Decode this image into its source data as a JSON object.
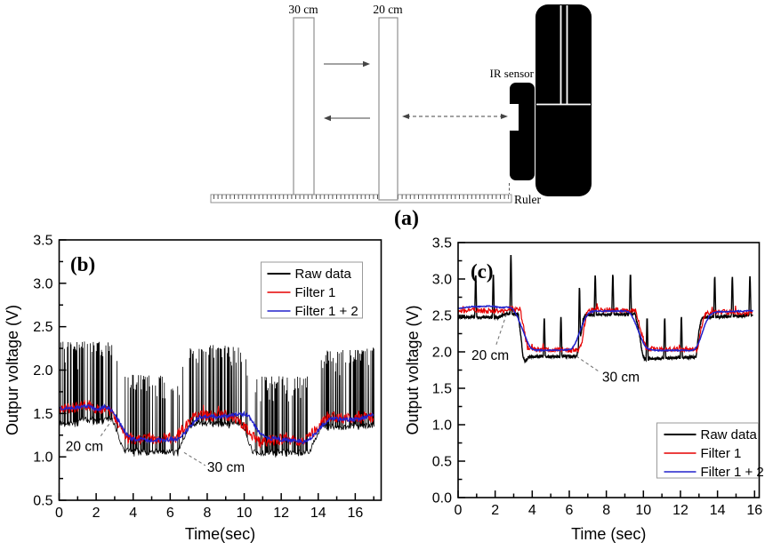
{
  "figure": {
    "panel_a": {
      "label": "(a)",
      "bar_left_label": "30 cm",
      "bar_right_label": "20 cm",
      "ir_sensor_label": "IR sensor",
      "ruler_label": "Ruler"
    },
    "colors": {
      "raw": "#000000",
      "filter1": "#e60000",
      "filter2": "#2121cc",
      "leader": "#777777",
      "diagram_outline": "#8f8f8f"
    }
  },
  "chart_data": [
    {
      "type": "line",
      "panel_label": "(b)",
      "xlabel": "Time(sec)",
      "ylabel": "Outpur voltage (V)",
      "xlim": [
        0,
        17.4
      ],
      "ylim": [
        0.5,
        3.5
      ],
      "xticks": [
        0,
        2,
        4,
        6,
        8,
        10,
        12,
        14,
        16
      ],
      "xminor_step": 1,
      "yticks": [
        0.5,
        1.0,
        1.5,
        2.0,
        2.5,
        3.0,
        3.5
      ],
      "ytick_labels": [
        "0.5",
        "1.0",
        "1.5",
        "2.0",
        "2.5",
        "3.0",
        "3.5"
      ],
      "yminor_step": 0.25,
      "tmax": 17.0,
      "legend": {
        "position": "top-right",
        "entries": [
          "Raw data",
          "Filter 1",
          "Filter 1 + 2"
        ]
      },
      "annotations": [
        {
          "text": "20 cm",
          "tx": 0.35,
          "ty": 1.07,
          "leader": [
            [
              2.25,
              1.24
            ],
            [
              2.97,
              1.46
            ]
          ]
        },
        {
          "text": "30 cm",
          "tx": 8.0,
          "ty": 0.83,
          "leader": [
            [
              6.75,
              1.05
            ],
            [
              7.9,
              0.9
            ]
          ]
        }
      ],
      "series": [
        {
          "name": "Raw data",
          "color": "#000000",
          "role": "raw_band",
          "width": 0.8,
          "noise": 0.07,
          "spike_probability": 0.58,
          "base_keypoints": [
            [
              0,
              1.4
            ],
            [
              0.4,
              1.38
            ],
            [
              1,
              1.4
            ],
            [
              1.5,
              1.44
            ],
            [
              2,
              1.4
            ],
            [
              2.6,
              1.45
            ],
            [
              2.9,
              1.42
            ],
            [
              3.5,
              1.08
            ],
            [
              4,
              1.06
            ],
            [
              6.4,
              1.05
            ],
            [
              6.7,
              1.18
            ],
            [
              7,
              1.36
            ],
            [
              7.5,
              1.38
            ],
            [
              9.9,
              1.38
            ],
            [
              10.1,
              1.25
            ],
            [
              10.45,
              1.05
            ],
            [
              13.55,
              1.05
            ],
            [
              13.8,
              1.2
            ],
            [
              14.15,
              1.35
            ],
            [
              15,
              1.34
            ],
            [
              17,
              1.37
            ]
          ],
          "spike_top_keypoints": [
            [
              0,
              2.33
            ],
            [
              2.9,
              2.33
            ],
            [
              3.4,
              1.95
            ],
            [
              6.5,
              1.93
            ],
            [
              6.95,
              2.25
            ],
            [
              7.3,
              2.3
            ],
            [
              9.9,
              2.28
            ],
            [
              10.35,
              1.93
            ],
            [
              13.6,
              1.93
            ],
            [
              14.1,
              2.22
            ],
            [
              17,
              2.26
            ]
          ]
        },
        {
          "name": "Filter 1",
          "color": "#e60000",
          "role": "filter",
          "width": 1.0,
          "noise": 0.065,
          "mean_keypoints": [
            [
              0,
              1.55
            ],
            [
              0.8,
              1.57
            ],
            [
              1.5,
              1.6
            ],
            [
              2.2,
              1.53
            ],
            [
              2.6,
              1.58
            ],
            [
              3,
              1.45
            ],
            [
              3.7,
              1.22
            ],
            [
              4.5,
              1.2
            ],
            [
              6.3,
              1.22
            ],
            [
              6.8,
              1.35
            ],
            [
              7.4,
              1.5
            ],
            [
              8,
              1.47
            ],
            [
              9.3,
              1.48
            ],
            [
              9.7,
              1.42
            ],
            [
              10.3,
              1.27
            ],
            [
              10.8,
              1.17
            ],
            [
              11.5,
              1.2
            ],
            [
              13.3,
              1.19
            ],
            [
              13.9,
              1.33
            ],
            [
              14.5,
              1.46
            ],
            [
              15.3,
              1.44
            ],
            [
              16.2,
              1.47
            ],
            [
              17,
              1.44
            ]
          ]
        },
        {
          "name": "Filter 1 + 2",
          "color": "#2121cc",
          "role": "filter_smooth",
          "width": 1.3,
          "noise": 0.022,
          "mean_keypoints": [
            [
              0,
              1.56
            ],
            [
              1,
              1.57
            ],
            [
              1.6,
              1.59
            ],
            [
              2.1,
              1.54
            ],
            [
              2.65,
              1.59
            ],
            [
              3.1,
              1.45
            ],
            [
              3.8,
              1.21
            ],
            [
              5,
              1.19
            ],
            [
              6.5,
              1.2
            ],
            [
              7,
              1.33
            ],
            [
              7.6,
              1.47
            ],
            [
              8.6,
              1.46
            ],
            [
              10.2,
              1.5
            ],
            [
              10.7,
              1.3
            ],
            [
              11.2,
              1.22
            ],
            [
              12,
              1.2
            ],
            [
              13.4,
              1.17
            ],
            [
              14,
              1.31
            ],
            [
              14.6,
              1.44
            ],
            [
              15.6,
              1.43
            ],
            [
              16.5,
              1.44
            ],
            [
              17,
              1.5
            ]
          ]
        }
      ]
    },
    {
      "type": "line",
      "panel_label": "(c)",
      "xlabel": "Time (sec)",
      "ylabel": "Output voltage (V)",
      "xlim": [
        0,
        16.25
      ],
      "ylim": [
        0,
        3.5
      ],
      "xticks": [
        0,
        2,
        4,
        6,
        8,
        10,
        12,
        14,
        16
      ],
      "xminor_step": 1,
      "yticks": [
        0,
        0.5,
        1,
        1.5,
        2,
        2.5,
        3,
        3.5
      ],
      "ytick_labels": [
        "0.0",
        "0.5",
        "1.0",
        "1.5",
        "2.0",
        "2.5",
        "3.0",
        "3.5"
      ],
      "yminor_step": 0.25,
      "tmax": 15.9,
      "legend": {
        "position": "bottom-right",
        "entries": [
          "Raw data",
          "Filter 1",
          "Filter 1 + 2"
        ]
      },
      "annotations": [
        {
          "text": "20 cm",
          "tx": 0.72,
          "ty": 1.89,
          "leader": [
            [
              2.06,
              2.1
            ],
            [
              2.64,
              2.54
            ]
          ]
        },
        {
          "text": "30 cm",
          "tx": 7.77,
          "ty": 1.59,
          "leader": [
            [
              6.38,
              1.94
            ],
            [
              7.6,
              1.73
            ]
          ]
        }
      ],
      "series": [
        {
          "name": "Raw data",
          "color": "#000000",
          "role": "raw_spiky",
          "width": 1.4,
          "noise": 0.035,
          "base_keypoints": [
            [
              0,
              2.47
            ],
            [
              0.5,
              2.48
            ],
            [
              2.2,
              2.47
            ],
            [
              2.5,
              2.52
            ],
            [
              3.25,
              2.52
            ],
            [
              3.5,
              1.95
            ],
            [
              3.62,
              1.86
            ],
            [
              3.8,
              1.93
            ],
            [
              6.4,
              1.94
            ],
            [
              6.55,
              2.1
            ],
            [
              6.75,
              2.45
            ],
            [
              6.9,
              2.51
            ],
            [
              9.55,
              2.52
            ],
            [
              9.75,
              2.3
            ],
            [
              9.95,
              1.97
            ],
            [
              10.05,
              1.9
            ],
            [
              12.85,
              1.93
            ],
            [
              13,
              2.3
            ],
            [
              13.15,
              2.47
            ],
            [
              15.9,
              2.5
            ]
          ],
          "spikes": [
            [
              0.95,
              3.04
            ],
            [
              1.9,
              3.05
            ],
            [
              2.85,
              3.32
            ],
            [
              4.65,
              2.45
            ],
            [
              5.55,
              2.47
            ],
            [
              6.55,
              2.87
            ],
            [
              7.4,
              3.04
            ],
            [
              8.35,
              3.05
            ],
            [
              9.3,
              3.05
            ],
            [
              10.2,
              2.45
            ],
            [
              11.15,
              2.45
            ],
            [
              12.05,
              2.47
            ],
            [
              13.85,
              3.02
            ],
            [
              14.8,
              3.02
            ],
            [
              15.75,
              3.03
            ]
          ]
        },
        {
          "name": "Filter 1",
          "color": "#e60000",
          "role": "filter",
          "width": 1.2,
          "noise": 0.035,
          "mean_keypoints": [
            [
              0,
              2.56
            ],
            [
              1,
              2.57
            ],
            [
              2.4,
              2.55
            ],
            [
              2.7,
              2.6
            ],
            [
              3.35,
              2.58
            ],
            [
              3.75,
              2.05
            ],
            [
              4.2,
              2.03
            ],
            [
              6.5,
              2.02
            ],
            [
              6.65,
              2.1
            ],
            [
              6.95,
              2.55
            ],
            [
              7.4,
              2.58
            ],
            [
              9.6,
              2.57
            ],
            [
              9.85,
              2.3
            ],
            [
              10.15,
              2.04
            ],
            [
              12.9,
              2.03
            ],
            [
              13.1,
              2.3
            ],
            [
              13.35,
              2.52
            ],
            [
              14,
              2.55
            ],
            [
              15.9,
              2.53
            ]
          ]
        },
        {
          "name": "Filter 1 + 2",
          "color": "#2121cc",
          "role": "filter_smooth",
          "width": 1.5,
          "noise": 0.008,
          "mean_keypoints": [
            [
              0,
              2.6
            ],
            [
              0.8,
              2.62
            ],
            [
              1.9,
              2.63
            ],
            [
              2.3,
              2.6
            ],
            [
              2.75,
              2.62
            ],
            [
              3.05,
              2.58
            ],
            [
              3.9,
              2.03
            ],
            [
              4.5,
              2.02
            ],
            [
              6.2,
              2.03
            ],
            [
              6.95,
              2.53
            ],
            [
              7.3,
              2.56
            ],
            [
              9.25,
              2.56
            ],
            [
              9.4,
              2.5
            ],
            [
              10.1,
              2.05
            ],
            [
              10.5,
              2.02
            ],
            [
              12.85,
              2.02
            ],
            [
              13.5,
              2.5
            ],
            [
              13.9,
              2.55
            ],
            [
              15.6,
              2.56
            ],
            [
              15.9,
              2.57
            ]
          ]
        }
      ]
    }
  ]
}
